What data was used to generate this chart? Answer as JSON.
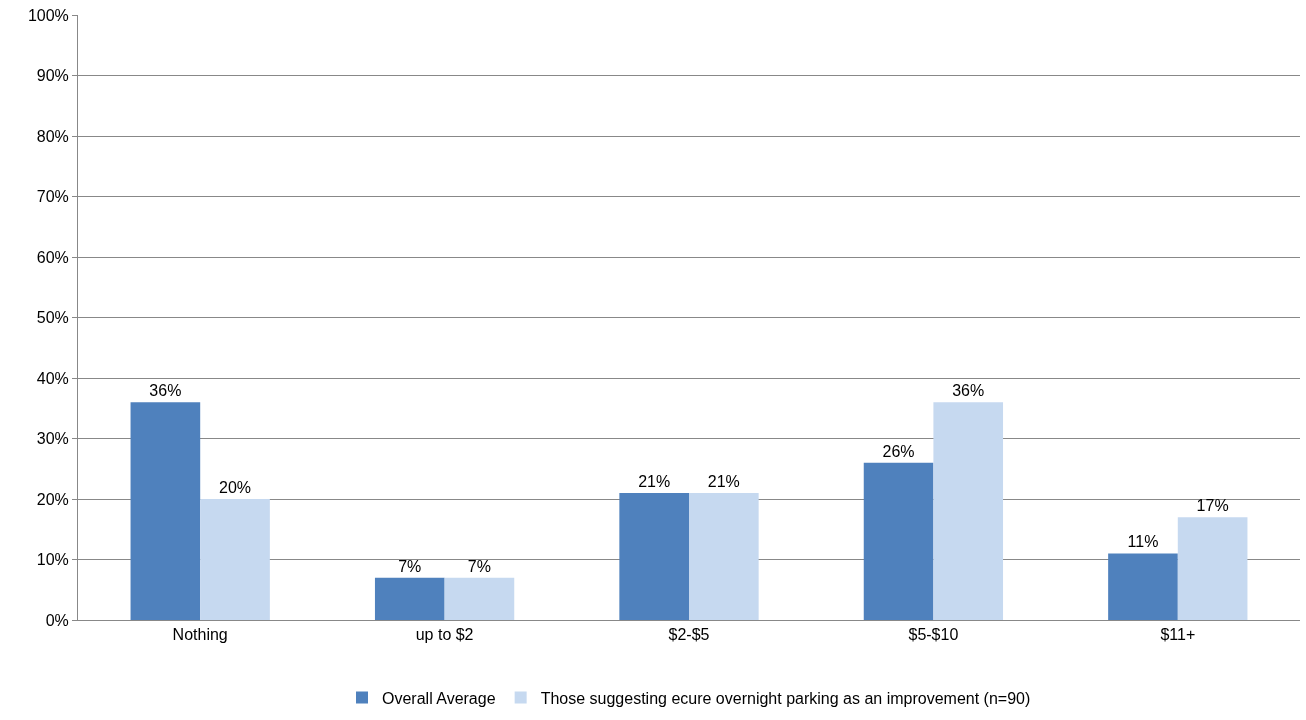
{
  "chart_data": {
    "type": "bar",
    "categories": [
      "Nothing",
      "up to $2",
      "$2-$5",
      "$5-$10",
      "$11+"
    ],
    "series": [
      {
        "name": "Overall Average",
        "color": "#4f81bd",
        "values": [
          36,
          7,
          21,
          26,
          11
        ],
        "value_labels": [
          "36%",
          "7%",
          "21%",
          "26%",
          "11%"
        ]
      },
      {
        "name": "Those suggesting ecure overnight parking as an improvement (n=90)",
        "color": "#c6d9f0",
        "values": [
          20,
          7,
          21,
          36,
          17
        ],
        "value_labels": [
          "20%",
          "7%",
          "21%",
          "36%",
          "17%"
        ]
      }
    ],
    "ylim": [
      0,
      100
    ],
    "yticks": [
      {
        "value": 0,
        "label": "0%"
      },
      {
        "value": 10,
        "label": "10%"
      },
      {
        "value": 20,
        "label": "20%"
      },
      {
        "value": 30,
        "label": "30%"
      },
      {
        "value": 40,
        "label": "40%"
      },
      {
        "value": 50,
        "label": "50%"
      },
      {
        "value": 60,
        "label": "60%"
      },
      {
        "value": 70,
        "label": "70%"
      },
      {
        "value": 80,
        "label": "80%"
      },
      {
        "value": 90,
        "label": "90%"
      },
      {
        "value": 100,
        "label": "100%"
      }
    ],
    "grid": "y",
    "legend": "bottom"
  }
}
